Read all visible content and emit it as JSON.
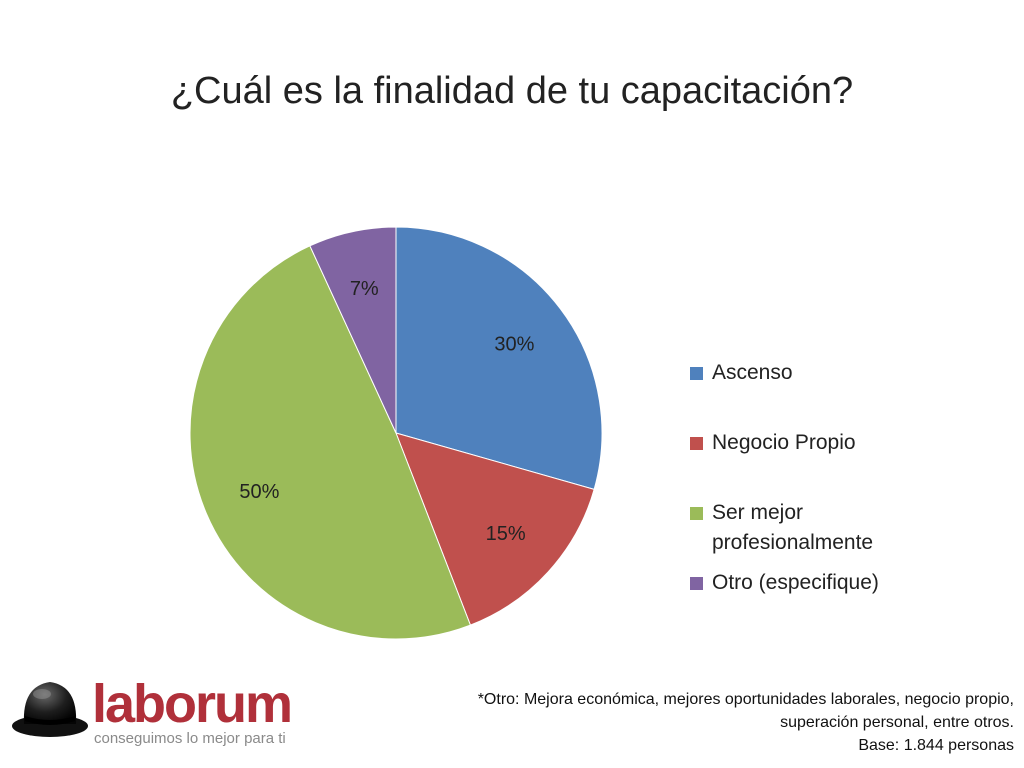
{
  "slide": {
    "title": "¿Cuál es la finalidad de tu capacitación?"
  },
  "chart_data": {
    "type": "pie",
    "categories": [
      "Ascenso",
      "Negocio Propio",
      "Ser mejor profesionalmente",
      "Otro (especifique)"
    ],
    "values": [
      30,
      15,
      50,
      7
    ],
    "labels": [
      "30%",
      "15%",
      "50%",
      "7%"
    ],
    "colors": [
      "#4f81bd",
      "#c0504d",
      "#9bbb59",
      "#8064a2"
    ],
    "legend_position": "right"
  },
  "legend": {
    "items": [
      {
        "label_lines": [
          "Ascenso"
        ],
        "color": "#4f81bd"
      },
      {
        "label_lines": [
          "Negocio Propio"
        ],
        "color": "#c0504d"
      },
      {
        "label_lines": [
          "Ser mejor",
          "profesionalmente"
        ],
        "color": "#9bbb59"
      },
      {
        "label_lines": [
          "Otro (especifique)"
        ],
        "color": "#8064a2"
      }
    ]
  },
  "footnote": {
    "line1": "*Otro: Mejora económica, mejores oportunidades laborales,  negocio propio,",
    "line2": "superación personal, entre otros.",
    "line3": "Base: 1.844 personas"
  },
  "brand": {
    "name": "laborum",
    "tagline": "conseguimos lo mejor para ti",
    "logo_icon": "bowler-hat-icon",
    "color": "#b0303a"
  }
}
